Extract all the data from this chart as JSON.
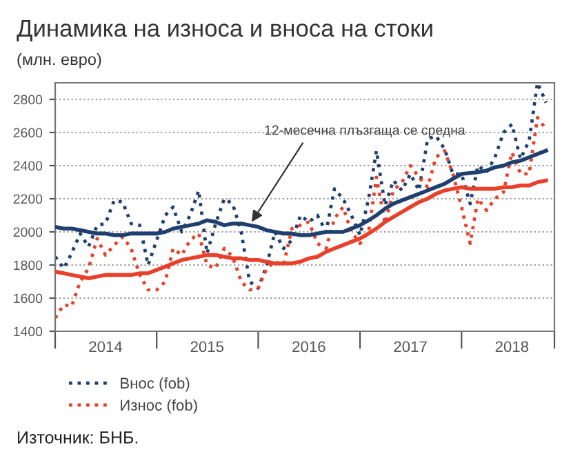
{
  "chart_data": {
    "type": "line",
    "title": "Динамика на износа и вноса на стоки",
    "subtitle": "(млн. евро)",
    "annotations": [
      {
        "text": "12-месечна плъзгаща се средна",
        "x": "2015-12",
        "y": 2040
      },
      "Източник: БНБ."
    ],
    "x": [
      "2014-01",
      "2014-02",
      "2014-03",
      "2014-04",
      "2014-05",
      "2014-06",
      "2014-07",
      "2014-08",
      "2014-09",
      "2014-10",
      "2014-11",
      "2014-12",
      "2015-01",
      "2015-02",
      "2015-03",
      "2015-04",
      "2015-05",
      "2015-06",
      "2015-07",
      "2015-08",
      "2015-09",
      "2015-10",
      "2015-11",
      "2015-12",
      "2016-01",
      "2016-02",
      "2016-03",
      "2016-04",
      "2016-05",
      "2016-06",
      "2016-07",
      "2016-08",
      "2016-09",
      "2016-10",
      "2016-11",
      "2016-12",
      "2017-01",
      "2017-02",
      "2017-03",
      "2017-04",
      "2017-05",
      "2017-06",
      "2017-07",
      "2017-08",
      "2017-09",
      "2017-10",
      "2017-11",
      "2017-12",
      "2018-01",
      "2018-02",
      "2018-03",
      "2018-04",
      "2018-05",
      "2018-06",
      "2018-07",
      "2018-08",
      "2018-09",
      "2018-10",
      "2018-11"
    ],
    "series": [
      {
        "name": "Внос (fob)",
        "color": "#1f3f6e",
        "line_style": "dotted",
        "values": [
          1850,
          1780,
          1870,
          1990,
          1910,
          2040,
          2050,
          2190,
          2180,
          2050,
          2040,
          1800,
          1950,
          2100,
          2150,
          2000,
          2100,
          2250,
          1870,
          2050,
          2200,
          2170,
          2000,
          1700,
          1660,
          1800,
          2000,
          1900,
          1950,
          2100,
          2060,
          2100,
          2000,
          2260,
          2200,
          2100,
          1980,
          2200,
          2490,
          2160,
          2310,
          2250,
          2350,
          2250,
          2560,
          2580,
          2500,
          2350,
          2350,
          2170,
          2400,
          2360,
          2450,
          2600,
          2650,
          2440,
          2550,
          2900,
          2780
        ]
      },
      {
        "name": "Износ (fob)",
        "color": "#e8402a",
        "line_style": "dotted",
        "values": [
          1480,
          1560,
          1550,
          1700,
          1780,
          1960,
          1860,
          1920,
          1970,
          1900,
          1740,
          1650,
          1650,
          1700,
          1900,
          1860,
          1950,
          1990,
          1800,
          1780,
          1900,
          1850,
          1700,
          1650,
          1660,
          1780,
          1820,
          1800,
          2020,
          2040,
          2060,
          1930,
          1900,
          2080,
          2150,
          2000,
          1930,
          2000,
          2330,
          2050,
          2250,
          2300,
          2400,
          2330,
          2270,
          2450,
          2490,
          2350,
          2150,
          1930,
          2200,
          2130,
          2200,
          2240,
          2480,
          2350,
          2350,
          2690,
          2620
        ]
      },
      {
        "color": "#1f3f6e",
        "line_style": "solid",
        "values": [
          2030,
          2020,
          2020,
          2010,
          2000,
          1990,
          1990,
          1980,
          1980,
          1990,
          1990,
          1990,
          1990,
          2000,
          2020,
          2030,
          2040,
          2050,
          2070,
          2060,
          2040,
          2050,
          2050,
          2040,
          2030,
          2010,
          2000,
          1990,
          1990,
          1980,
          1980,
          1990,
          2000,
          2000,
          2000,
          2020,
          2040,
          2070,
          2100,
          2140,
          2170,
          2190,
          2210,
          2230,
          2250,
          2270,
          2290,
          2320,
          2350,
          2355,
          2360,
          2370,
          2390,
          2400,
          2420,
          2430,
          2450,
          2470,
          2490
        ]
      },
      {
        "color": "#e8402a",
        "line_style": "solid",
        "values": [
          1760,
          1750,
          1740,
          1730,
          1720,
          1730,
          1740,
          1740,
          1740,
          1740,
          1750,
          1750,
          1770,
          1790,
          1810,
          1830,
          1840,
          1850,
          1860,
          1860,
          1850,
          1840,
          1840,
          1830,
          1830,
          1820,
          1810,
          1810,
          1810,
          1820,
          1840,
          1850,
          1880,
          1900,
          1920,
          1940,
          1960,
          1990,
          2020,
          2060,
          2090,
          2120,
          2150,
          2180,
          2200,
          2230,
          2250,
          2260,
          2270,
          2260,
          2260,
          2260,
          2260,
          2270,
          2270,
          2280,
          2280,
          2300,
          2310
        ]
      }
    ],
    "xlim": [
      "2014-01",
      "2018-12"
    ],
    "xticks": [
      {
        "value": "2014-01",
        "label": null
      },
      {
        "value": "2014-07",
        "label": "2014"
      },
      {
        "value": "2015-01",
        "label": null
      },
      {
        "value": "2015-07",
        "label": "2015"
      },
      {
        "value": "2016-01",
        "label": null
      },
      {
        "value": "2016-07",
        "label": "2016"
      },
      {
        "value": "2017-01",
        "label": null
      },
      {
        "value": "2017-07",
        "label": "2017"
      },
      {
        "value": "2018-01",
        "label": null
      },
      {
        "value": "2018-07",
        "label": "2018"
      },
      {
        "value": "2018-12",
        "label": null
      }
    ],
    "ylim": [
      1400,
      2900
    ],
    "yticks": [
      1400,
      1600,
      1800,
      2000,
      2200,
      2400,
      2600,
      2800
    ],
    "grid": "y",
    "legend": "bottom left"
  }
}
